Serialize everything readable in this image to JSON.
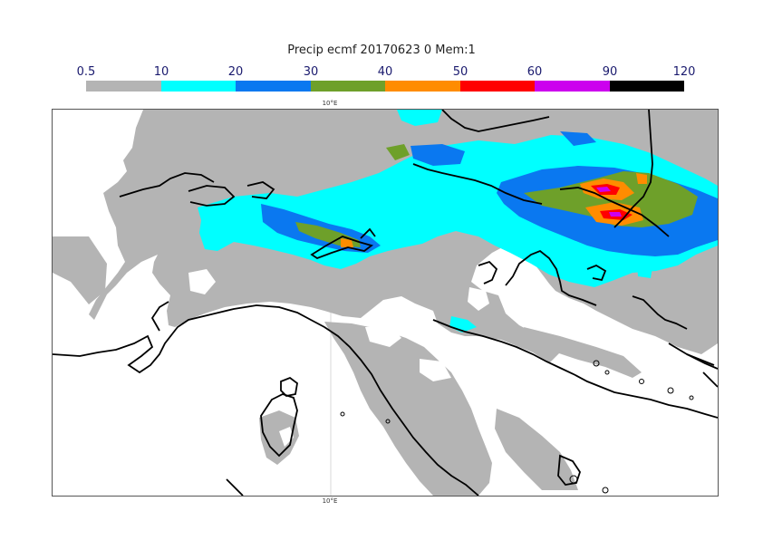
{
  "title": "Precip ecmf 20170623 0 Mem:1",
  "legend": {
    "labels": [
      "0.5",
      "10",
      "20",
      "30",
      "40",
      "50",
      "60",
      "90",
      "120"
    ],
    "colors": [
      "#b4b4b4",
      "#00ffff",
      "#0a78f0",
      "#6ea02a",
      "#ff8c00",
      "#ff0000",
      "#cc00ee",
      "#000000"
    ]
  },
  "axis": {
    "meridian_top_label": "10°E",
    "meridian_bottom_label": "10°E"
  },
  "palette": {
    "land_outline": "#000000",
    "background": "#ffffff"
  }
}
